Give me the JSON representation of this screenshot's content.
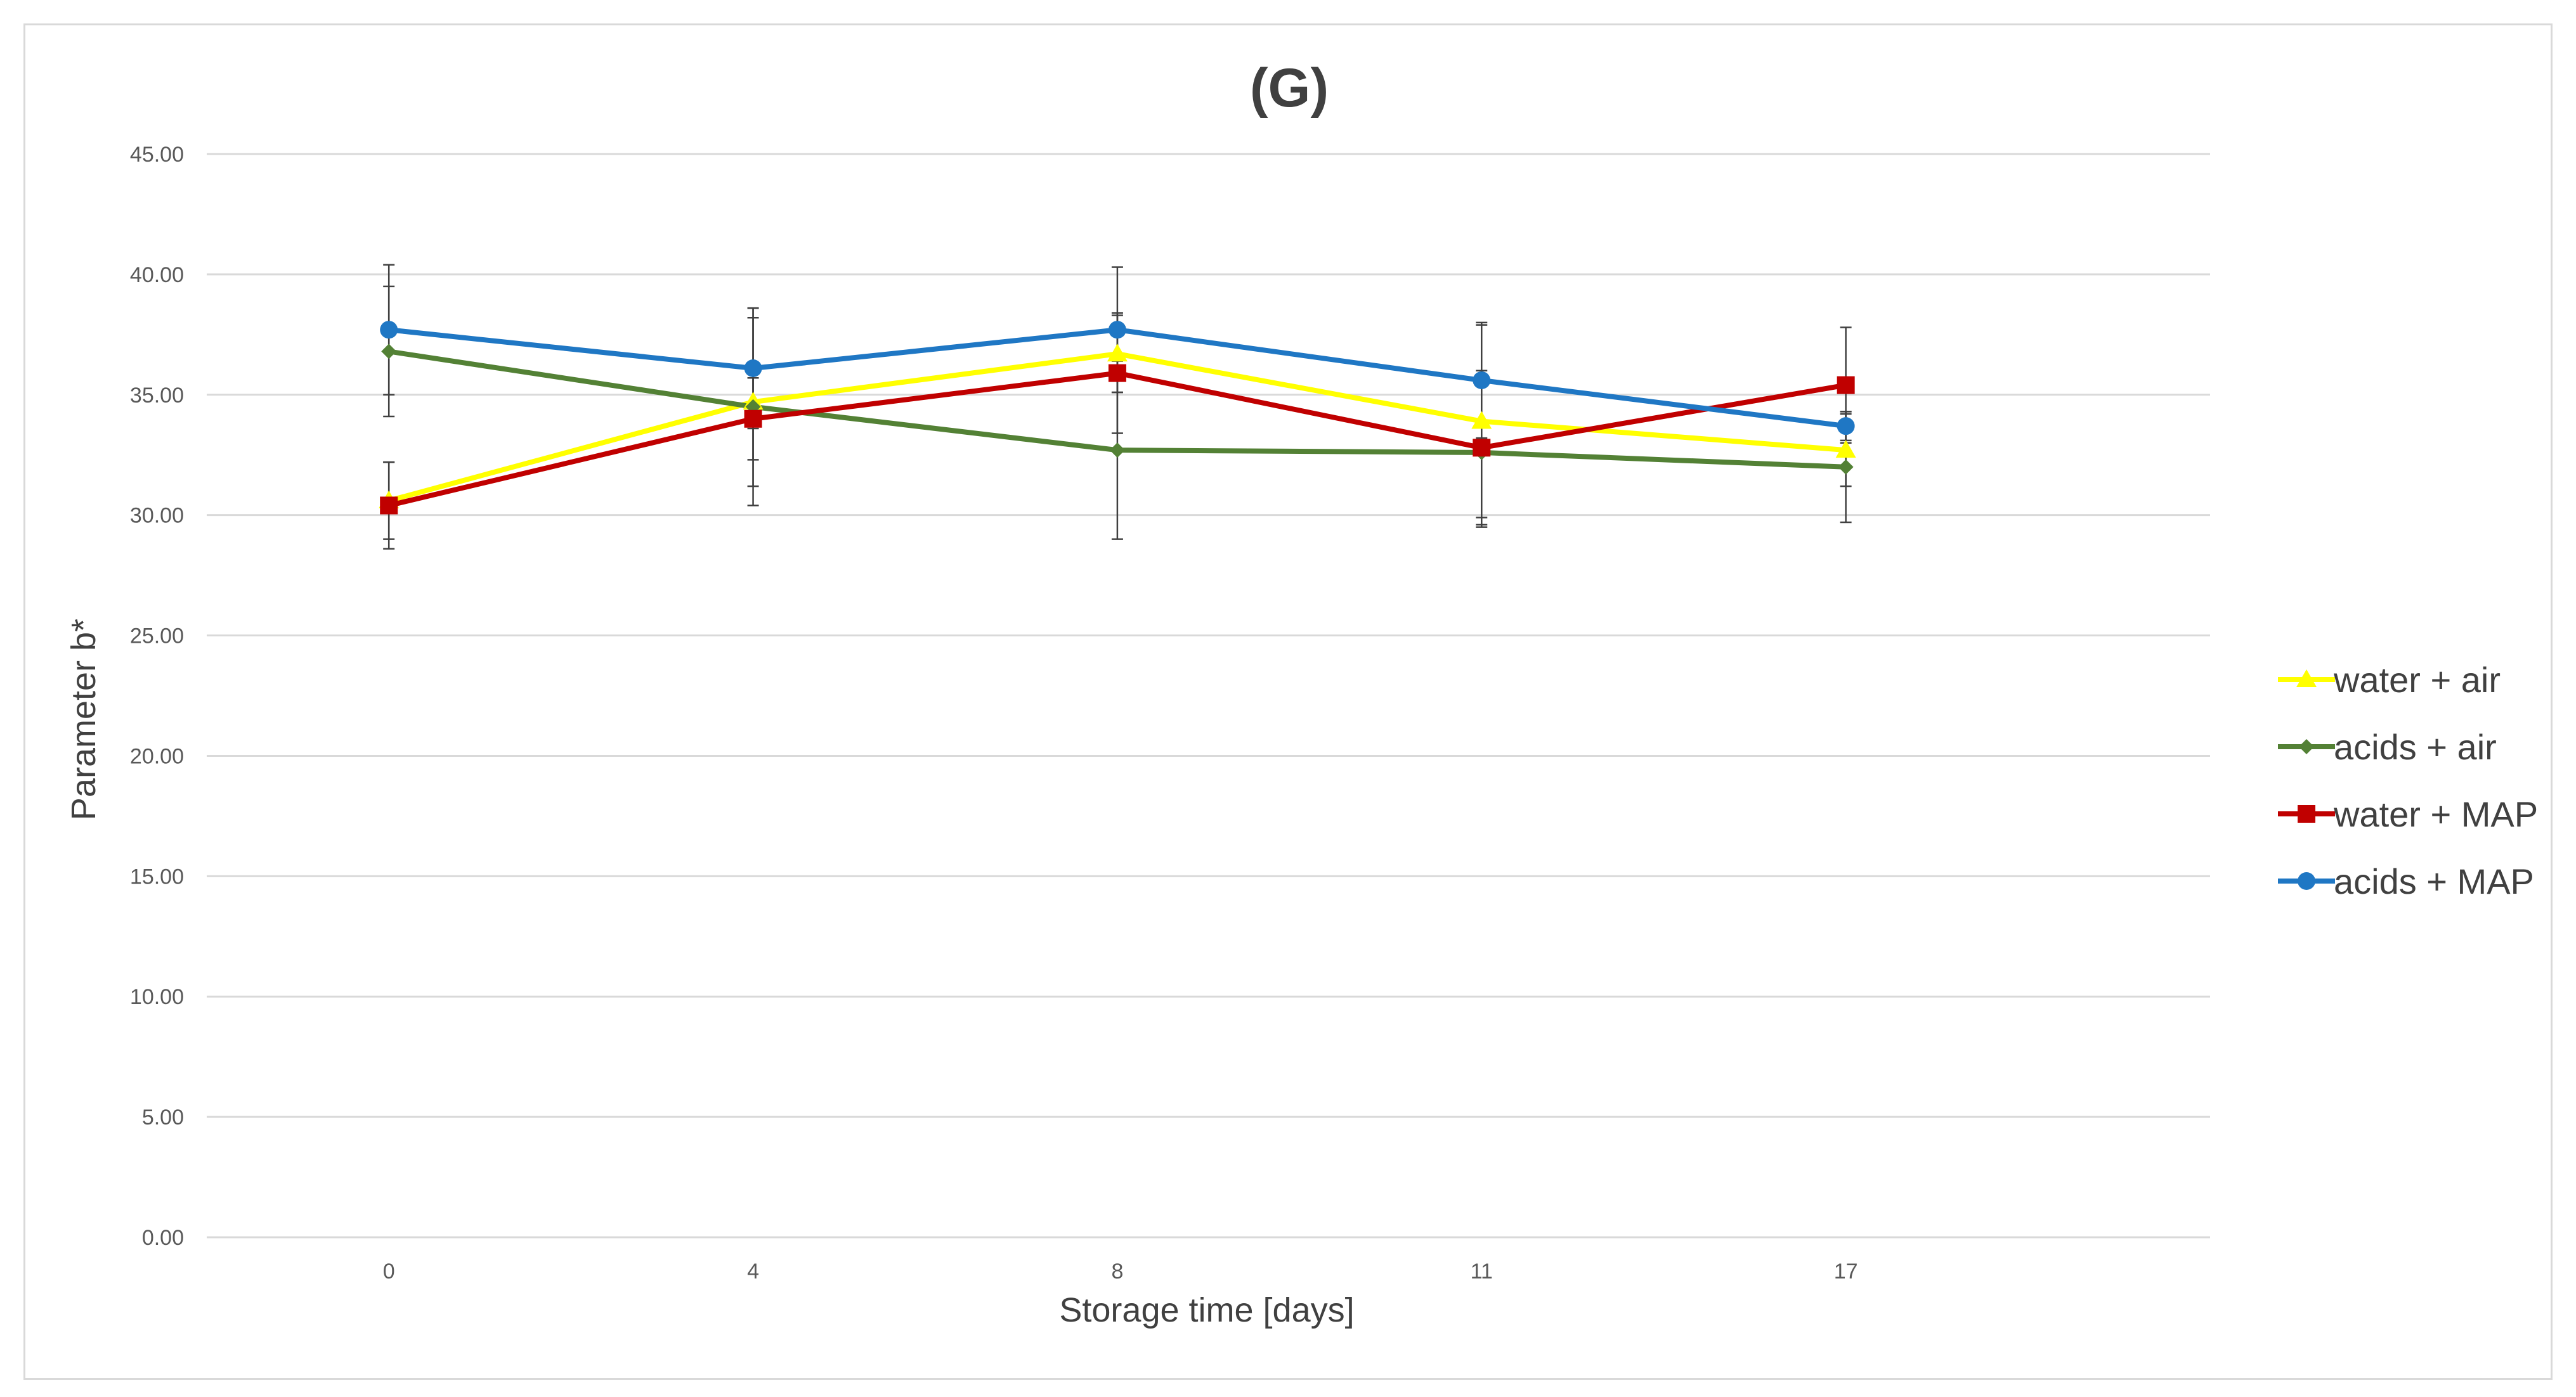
{
  "chart_data": {
    "type": "line",
    "title": "(G)",
    "xlabel": "Storage time [days]",
    "ylabel": "Parameter b*",
    "categories": [
      "0",
      "4",
      "8",
      "11",
      "17"
    ],
    "ylim": [
      0,
      45
    ],
    "yticks": [
      "0.00",
      "5.00",
      "10.00",
      "15.00",
      "20.00",
      "25.00",
      "30.00",
      "35.00",
      "40.00",
      "45.00"
    ],
    "grid": true,
    "legend_position": "right",
    "series": [
      {
        "name": "water + air",
        "color": "#ffff00",
        "marker": "triangle",
        "values": [
          30.6,
          34.7,
          36.7,
          33.9,
          32.7
        ],
        "errors": [
          1.6,
          3.5,
          1.6,
          4.0,
          1.5
        ]
      },
      {
        "name": "acids + air",
        "color": "#538135",
        "marker": "diamond",
        "values": [
          36.8,
          34.5,
          32.7,
          32.6,
          32.0
        ],
        "errors": [
          2.7,
          4.1,
          3.7,
          3.1,
          2.3
        ]
      },
      {
        "name": "water + MAP",
        "color": "#c00000",
        "marker": "square",
        "values": [
          30.4,
          34.0,
          35.9,
          32.8,
          35.4
        ],
        "errors": [
          1.8,
          1.7,
          2.5,
          3.2,
          2.4
        ]
      },
      {
        "name": "acids + MAP",
        "color": "#1f77c4",
        "marker": "circle",
        "values": [
          37.7,
          36.1,
          37.7,
          35.6,
          33.7
        ],
        "errors": [
          2.7,
          2.5,
          2.6,
          2.4,
          0.6
        ]
      }
    ]
  }
}
